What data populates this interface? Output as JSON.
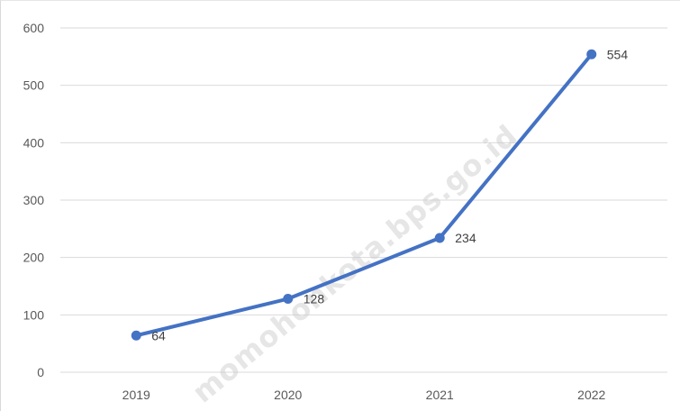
{
  "chart_data": {
    "type": "line",
    "categories": [
      "2019",
      "2020",
      "2021",
      "2022"
    ],
    "series": [
      {
        "values": [
          64,
          128,
          234,
          554
        ],
        "color": "#4472C4"
      }
    ],
    "data_labels": [
      "64",
      "128",
      "234",
      "554"
    ],
    "ylim": [
      0,
      600
    ],
    "y_ticks": [
      0,
      100,
      200,
      300,
      400,
      500,
      600
    ],
    "grid": true,
    "title": "",
    "xlabel": "",
    "ylabel": ""
  },
  "watermark": {
    "text": "momohonkota.bps.go.id"
  }
}
